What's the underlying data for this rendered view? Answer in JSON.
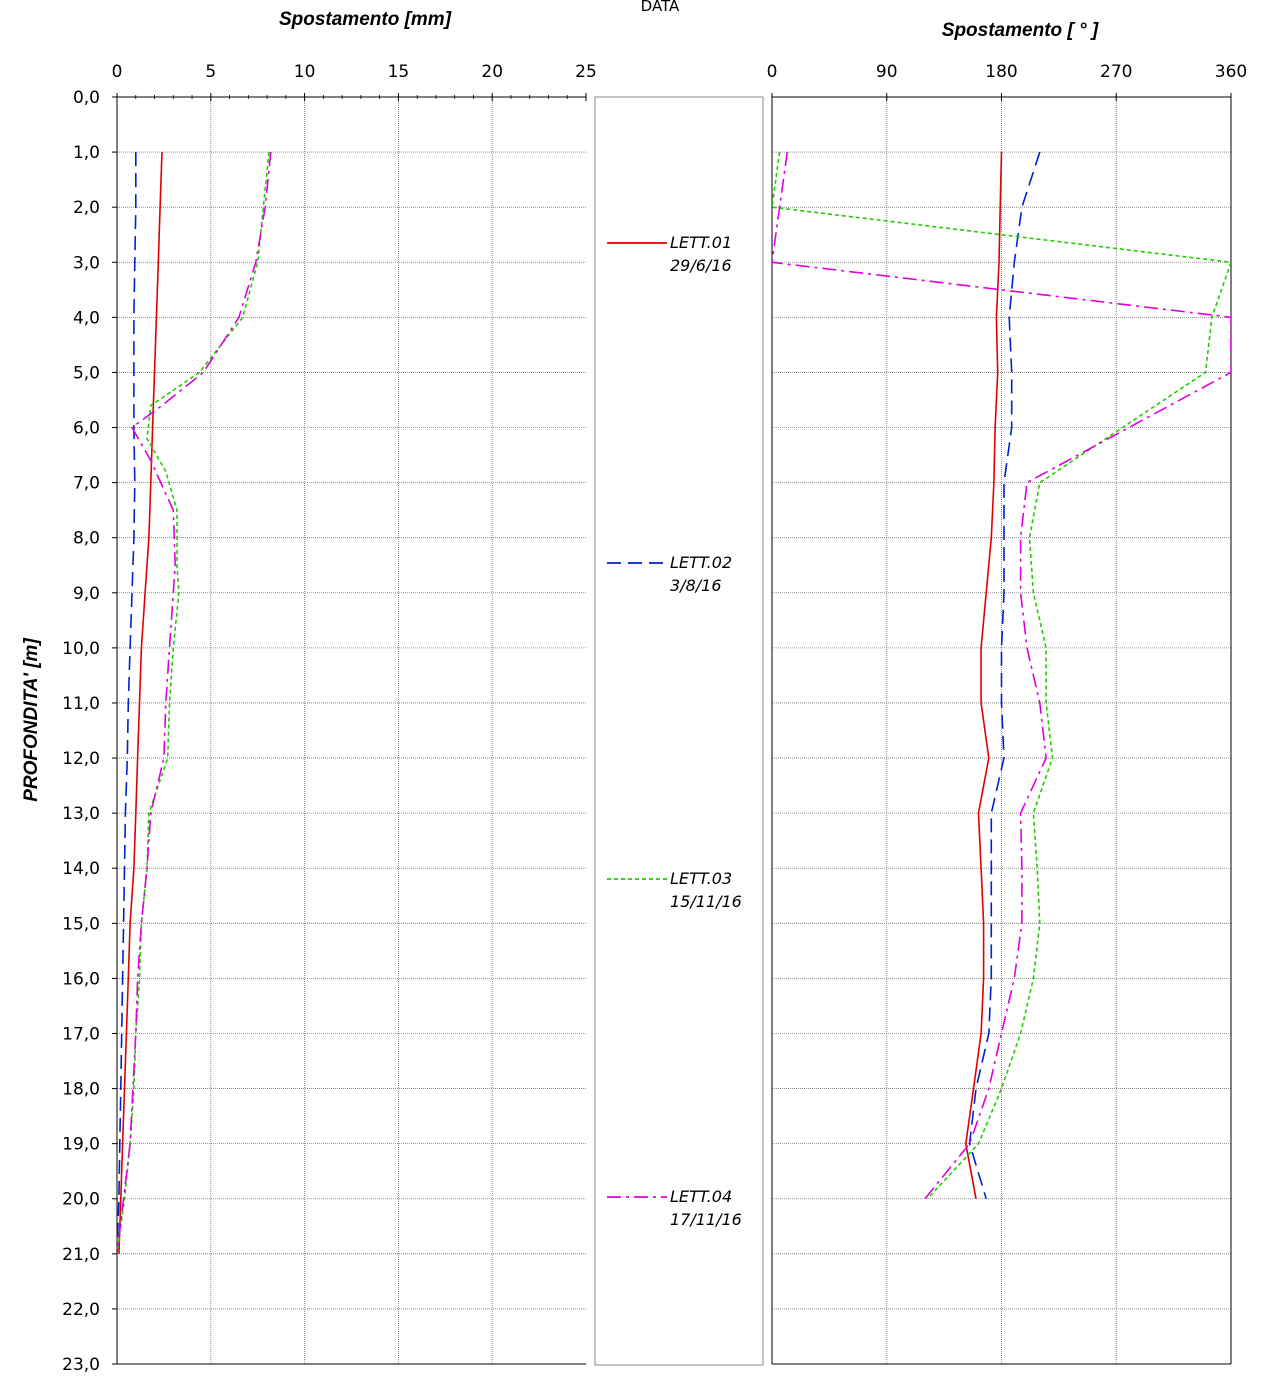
{
  "header_label": "DATA",
  "y_axis_label": "PROFONDITA' [m]",
  "depth_ticks": [
    "0,0",
    "1,0",
    "2,0",
    "3,0",
    "4,0",
    "5,0",
    "6,0",
    "7,0",
    "8,0",
    "9,0",
    "10,0",
    "11,0",
    "12,0",
    "13,0",
    "14,0",
    "15,0",
    "16,0",
    "17,0",
    "18,0",
    "19,0",
    "20,0",
    "21,0",
    "22,0",
    "23,0"
  ],
  "colors": {
    "lett01": "#e00000",
    "lett02": "#0022cc",
    "lett03": "#22cc00",
    "lett04": "#e000e0"
  },
  "legend": [
    {
      "name": "LETT.01",
      "date": "29/6/16",
      "style": "solid",
      "color": "#e00000"
    },
    {
      "name": "LETT.02",
      "date": "3/8/16",
      "style": "dashed",
      "color": "#0022cc"
    },
    {
      "name": "LETT.03",
      "date": "15/11/16",
      "style": "dotted",
      "color": "#22cc00"
    },
    {
      "name": "LETT.04",
      "date": "17/11/16",
      "style": "dashdot",
      "color": "#e000e0"
    }
  ],
  "chart_data": [
    {
      "type": "line",
      "title": "Spostamento [mm]",
      "x_ticks": [
        "0",
        "5",
        "10",
        "15",
        "20",
        "25"
      ],
      "xlim": [
        0,
        25
      ],
      "ylim": [
        0,
        23
      ],
      "y_inverted": true,
      "ylabel": "PROFONDITA' [m]",
      "grid": true,
      "series": [
        {
          "name": "LETT.01",
          "points": [
            [
              2.4,
              1
            ],
            [
              2.3,
              2
            ],
            [
              2.2,
              3
            ],
            [
              2.1,
              4
            ],
            [
              2.0,
              5
            ],
            [
              1.9,
              6
            ],
            [
              1.8,
              7
            ],
            [
              1.7,
              8
            ],
            [
              1.5,
              9
            ],
            [
              1.3,
              10
            ],
            [
              1.2,
              11
            ],
            [
              1.1,
              12
            ],
            [
              1.0,
              13
            ],
            [
              0.9,
              14
            ],
            [
              0.7,
              15
            ],
            [
              0.6,
              16
            ],
            [
              0.5,
              17
            ],
            [
              0.4,
              18
            ],
            [
              0.3,
              19
            ],
            [
              0.2,
              20
            ],
            [
              0.1,
              21
            ]
          ]
        },
        {
          "name": "LETT.02",
          "points": [
            [
              1.0,
              1
            ],
            [
              1.0,
              2
            ],
            [
              0.95,
              3
            ],
            [
              0.9,
              4
            ],
            [
              0.9,
              5
            ],
            [
              0.9,
              6
            ],
            [
              0.95,
              7
            ],
            [
              0.9,
              8
            ],
            [
              0.8,
              9
            ],
            [
              0.7,
              10
            ],
            [
              0.6,
              11
            ],
            [
              0.55,
              12
            ],
            [
              0.45,
              13
            ],
            [
              0.4,
              14
            ],
            [
              0.35,
              15
            ],
            [
              0.3,
              16
            ],
            [
              0.25,
              17
            ],
            [
              0.2,
              18
            ],
            [
              0.15,
              19
            ],
            [
              0.1,
              20
            ],
            [
              0.0,
              21
            ]
          ]
        },
        {
          "name": "LETT.03",
          "points": [
            [
              8.1,
              1
            ],
            [
              7.8,
              2
            ],
            [
              7.5,
              3
            ],
            [
              6.7,
              4
            ],
            [
              4.4,
              5
            ],
            [
              1.8,
              5.6
            ],
            [
              1.6,
              6.2
            ],
            [
              2.6,
              6.8
            ],
            [
              3.2,
              7.5
            ],
            [
              3.2,
              8.5
            ],
            [
              3.3,
              9
            ],
            [
              3.0,
              10
            ],
            [
              2.8,
              11
            ],
            [
              2.7,
              12
            ],
            [
              1.7,
              13
            ],
            [
              1.6,
              14
            ],
            [
              1.3,
              15
            ],
            [
              1.2,
              16
            ],
            [
              1.0,
              17
            ],
            [
              0.9,
              18
            ],
            [
              0.7,
              19
            ],
            [
              0.4,
              20
            ],
            [
              0.0,
              21
            ]
          ]
        },
        {
          "name": "LETT.04",
          "points": [
            [
              8.2,
              1
            ],
            [
              7.9,
              2
            ],
            [
              7.4,
              3
            ],
            [
              6.5,
              4
            ],
            [
              4.6,
              5
            ],
            [
              2.4,
              5.6
            ],
            [
              0.8,
              6
            ],
            [
              1.8,
              6.6
            ],
            [
              3.0,
              7.5
            ],
            [
              3.1,
              8.5
            ],
            [
              3.0,
              9
            ],
            [
              2.8,
              10
            ],
            [
              2.6,
              11
            ],
            [
              2.5,
              12
            ],
            [
              1.8,
              13
            ],
            [
              1.6,
              14
            ],
            [
              1.3,
              15
            ],
            [
              1.1,
              16
            ],
            [
              1.0,
              17
            ],
            [
              0.85,
              18
            ],
            [
              0.7,
              19
            ],
            [
              0.35,
              20
            ],
            [
              0.0,
              21
            ]
          ]
        }
      ]
    },
    {
      "type": "line",
      "title": "Spostamento [ ° ]",
      "x_ticks": [
        "0",
        "90",
        "180",
        "270",
        "360"
      ],
      "xlim": [
        0,
        360
      ],
      "ylim": [
        0,
        23
      ],
      "y_inverted": true,
      "grid": true,
      "series": [
        {
          "name": "LETT.01",
          "points": [
            [
              180,
              1
            ],
            [
              179,
              2
            ],
            [
              178,
              3
            ],
            [
              176,
              4
            ],
            [
              177,
              5
            ],
            [
              175,
              6
            ],
            [
              174,
              7
            ],
            [
              172,
              8
            ],
            [
              168,
              9
            ],
            [
              164,
              10
            ],
            [
              164,
              11
            ],
            [
              170,
              12
            ],
            [
              162,
              13
            ],
            [
              164,
              14
            ],
            [
              166,
              15
            ],
            [
              166,
              16
            ],
            [
              164,
              17
            ],
            [
              158,
              18
            ],
            [
              152,
              19
            ],
            [
              160,
              20
            ]
          ]
        },
        {
          "name": "LETT.02",
          "points": [
            [
              210,
              1
            ],
            [
              196,
              2
            ],
            [
              190,
              3
            ],
            [
              186,
              4
            ],
            [
              188,
              5
            ],
            [
              188,
              6
            ],
            [
              182,
              7
            ],
            [
              182,
              8
            ],
            [
              182,
              9
            ],
            [
              180,
              10
            ],
            [
              180,
              11
            ],
            [
              182,
              12
            ],
            [
              172,
              13
            ],
            [
              172,
              14
            ],
            [
              172,
              15
            ],
            [
              172,
              16
            ],
            [
              170,
              17
            ],
            [
              160,
              18
            ],
            [
              155,
              19
            ],
            [
              168,
              20
            ]
          ]
        },
        {
          "name": "LETT.03",
          "points": [
            [
              6,
              1
            ],
            [
              0,
              2
            ],
            [
              360,
              3
            ],
            [
              345,
              4
            ],
            [
              340,
              5
            ],
            [
              275,
              6
            ],
            [
              210,
              7
            ],
            [
              202,
              8
            ],
            [
              205,
              9
            ],
            [
              215,
              10
            ],
            [
              215,
              11
            ],
            [
              220,
              12
            ],
            [
              205,
              13
            ],
            [
              208,
              14
            ],
            [
              210,
              15
            ],
            [
              205,
              16
            ],
            [
              195,
              17
            ],
            [
              180,
              18
            ],
            [
              162,
              19
            ],
            [
              122,
              20
            ]
          ]
        },
        {
          "name": "LETT.04",
          "points": [
            [
              12,
              1
            ],
            [
              6,
              2
            ],
            [
              0,
              3
            ],
            [
              360,
              4
            ],
            [
              360,
              5
            ],
            [
              280,
              6
            ],
            [
              200,
              7
            ],
            [
              195,
              8
            ],
            [
              195,
              9
            ],
            [
              200,
              10
            ],
            [
              210,
              11
            ],
            [
              215,
              12
            ],
            [
              195,
              13
            ],
            [
              196,
              14
            ],
            [
              196,
              15
            ],
            [
              190,
              16
            ],
            [
              180,
              17
            ],
            [
              170,
              18
            ],
            [
              155,
              19
            ],
            [
              120,
              20
            ]
          ]
        }
      ]
    }
  ]
}
